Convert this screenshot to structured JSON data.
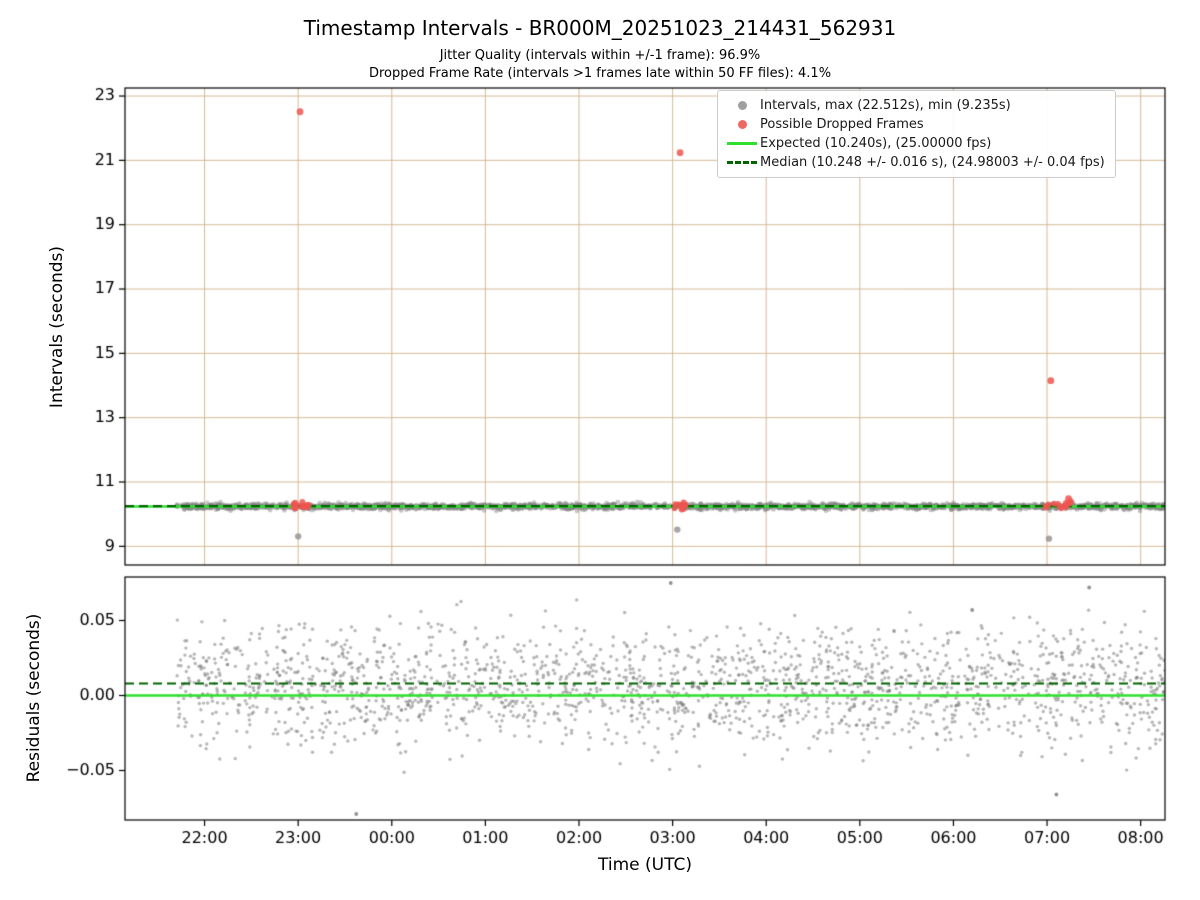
{
  "figure": {
    "title": "Timestamp Intervals - BR000M_20251023_214431_562931",
    "subtitle1": "Jitter Quality (intervals within +/-1 frame): 96.9%",
    "subtitle2": "Dropped Frame Rate (intervals >1 frames late within 50 FF files): 4.1%"
  },
  "chart_data": [
    {
      "type": "scatter",
      "title": "Timestamp Intervals - BR000M_20251023_214431_562931",
      "ylabel": "Intervals (seconds)",
      "ylim": [
        8.42,
        23.25
      ],
      "yticks": [
        9,
        11,
        13,
        15,
        17,
        19,
        21,
        23
      ],
      "ytick_labels": [
        "9",
        "11",
        "13",
        "15",
        "17",
        "19",
        "21",
        "23"
      ],
      "xlim_hours": [
        21.15,
        32.26
      ],
      "xticks_hours": [
        22,
        23,
        24,
        25,
        26,
        27,
        28,
        29,
        30,
        31,
        32
      ],
      "xtick_labels": [
        "22:00",
        "23:00",
        "00:00",
        "01:00",
        "02:00",
        "03:00",
        "04:00",
        "05:00",
        "06:00",
        "07:00",
        "08:00"
      ],
      "grid": true,
      "grid_color": "#d2b48c",
      "colors": {
        "intervals": "#828282",
        "dropped": "#ee5550",
        "expected": "#2de02d",
        "median": "#006400"
      },
      "series": [
        {
          "name": "Intervals, max (22.512s), min (9.235s)",
          "marker": "dot",
          "band": {
            "x_start": 21.7,
            "x_end": 32.26,
            "center": 10.24,
            "sigma": 0.045,
            "max_dev": 0.16,
            "count": 2600
          },
          "outliers": [
            [
              23.0,
              9.31
            ],
            [
              27.05,
              9.52
            ],
            [
              31.02,
              9.24
            ]
          ]
        },
        {
          "name": "Possible Dropped Frames",
          "marker": "dot",
          "clusters": [
            {
              "x_start": 22.95,
              "x_end": 23.16,
              "center": 10.26,
              "sigma": 0.05,
              "count": 14
            },
            {
              "x_start": 27.0,
              "x_end": 27.17,
              "center": 10.25,
              "sigma": 0.05,
              "count": 12
            },
            {
              "x_start": 30.98,
              "x_end": 31.27,
              "center": 10.27,
              "sigma": 0.06,
              "count": 14
            }
          ],
          "outliers": [
            [
              23.02,
              22.512
            ],
            [
              27.08,
              21.24
            ],
            [
              31.04,
              14.15
            ],
            [
              31.23,
              10.48
            ]
          ]
        }
      ],
      "expected_line": {
        "label": "Expected (10.240s), (25.00000 fps)",
        "value": 10.24,
        "style": "solid"
      },
      "median_line": {
        "label": "Median (10.248 +/- 0.016 s), (24.98003 +/- 0.04 fps)",
        "value": 10.248,
        "style": "dashed"
      },
      "legend": {
        "position": "upper right",
        "items": [
          {
            "label": "Intervals, max (22.512s), min (9.235s)",
            "marker": "gray-dot"
          },
          {
            "label": "Possible Dropped Frames",
            "marker": "red-dot"
          },
          {
            "label": "Expected (10.240s), (25.00000 fps)",
            "marker": "green-solid-line"
          },
          {
            "label": "Median (10.248 +/- 0.016 s), (24.98003 +/- 0.04 fps)",
            "marker": "darkgreen-dashed-line"
          }
        ]
      },
      "stats": {
        "jitter_quality_pct": 96.9,
        "dropped_frame_rate_pct": 4.1,
        "max_interval_s": 22.512,
        "min_interval_s": 9.235,
        "expected_s": 10.24,
        "expected_fps": 25.0,
        "median_s": 10.248,
        "median_s_err": 0.016,
        "median_fps": 24.98003,
        "median_fps_err": 0.04
      }
    },
    {
      "type": "scatter",
      "ylabel": "Residuals (seconds)",
      "xlabel": "Time (UTC)",
      "ylim": [
        -0.083,
        0.079
      ],
      "yticks": [
        -0.05,
        0,
        0.05
      ],
      "ytick_labels": [
        "−0.05",
        "0.00",
        "0.05"
      ],
      "grid": false,
      "band": {
        "x_start": 21.7,
        "x_end": 32.26,
        "center": 0.006,
        "sigma": 0.02,
        "max_dev": 0.058,
        "count": 2000
      },
      "outliers": [
        [
          26.98,
          0.075
        ],
        [
          23.62,
          -0.079
        ],
        [
          31.1,
          -0.066
        ],
        [
          31.45,
          0.072
        ],
        [
          30.2,
          0.057
        ]
      ],
      "zero_line": {
        "value": 0.0,
        "style": "solid"
      },
      "median_line": {
        "value": 0.008,
        "style": "dashed"
      }
    }
  ]
}
